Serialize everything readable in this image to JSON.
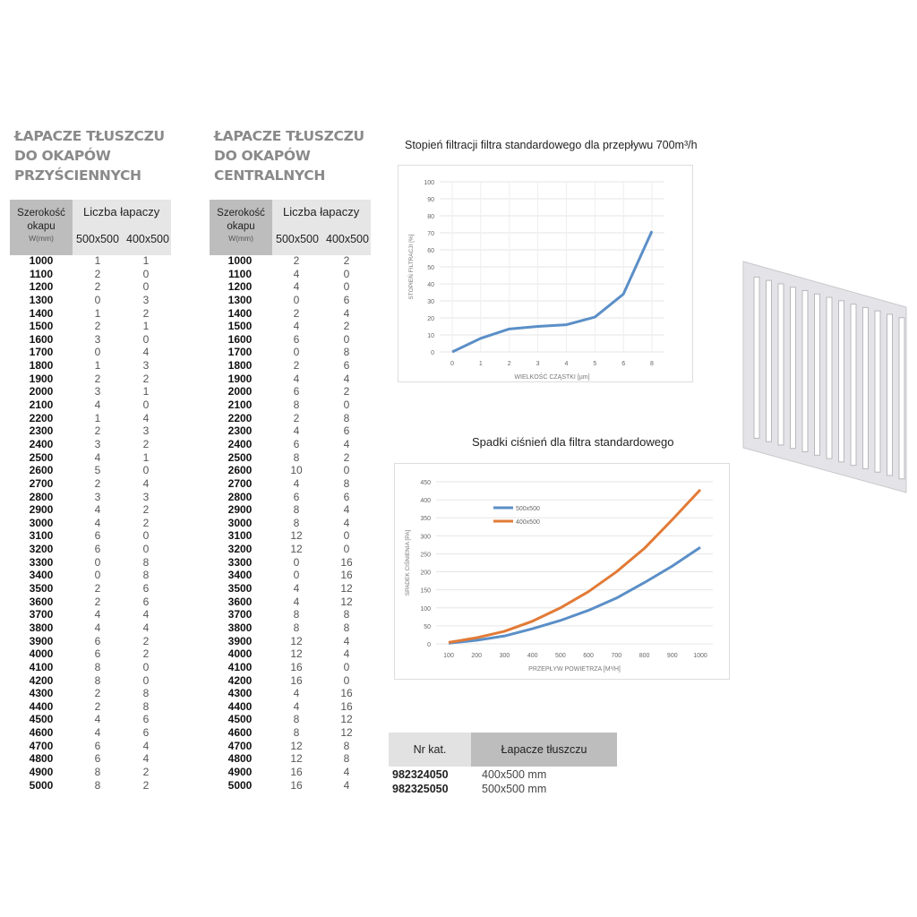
{
  "wall": {
    "title": [
      "ŁAPACZE TŁUSZCZU",
      "DO OKAPÓW",
      "PRZYŚCIENNYCH"
    ]
  },
  "central": {
    "title": [
      "ŁAPACZE TŁUSZCZU",
      "DO OKAPÓW",
      "CENTRALNYCH"
    ]
  },
  "table_header": {
    "width_label": "Szerokość",
    "width_label2": "okapu",
    "width_unit": "W(mm)",
    "count_label": "Liczba łapaczy",
    "col_a": "500x500",
    "col_b": "400x500"
  },
  "widths": [
    1000,
    1100,
    1200,
    1300,
    1400,
    1500,
    1600,
    1700,
    1800,
    1900,
    2000,
    2100,
    2200,
    2300,
    2400,
    2500,
    2600,
    2700,
    2800,
    2900,
    3000,
    3100,
    3200,
    3300,
    3400,
    3500,
    3600,
    3700,
    3800,
    3900,
    4000,
    4100,
    4200,
    4300,
    4400,
    4500,
    4600,
    4700,
    4800,
    4900,
    5000
  ],
  "wall_a": [
    1,
    2,
    2,
    0,
    1,
    2,
    3,
    0,
    1,
    2,
    3,
    4,
    1,
    2,
    3,
    4,
    5,
    2,
    3,
    4,
    4,
    6,
    6,
    0,
    0,
    2,
    2,
    4,
    4,
    6,
    6,
    8,
    8,
    2,
    2,
    4,
    4,
    6,
    6,
    8,
    8
  ],
  "wall_b": [
    1,
    0,
    0,
    3,
    2,
    1,
    0,
    4,
    3,
    2,
    1,
    0,
    4,
    3,
    2,
    1,
    0,
    4,
    3,
    2,
    2,
    0,
    0,
    8,
    8,
    6,
    6,
    4,
    4,
    2,
    2,
    0,
    0,
    8,
    8,
    6,
    6,
    4,
    4,
    2,
    2
  ],
  "central_a": [
    2,
    4,
    4,
    0,
    2,
    4,
    6,
    0,
    2,
    4,
    6,
    8,
    2,
    4,
    6,
    8,
    10,
    4,
    6,
    8,
    8,
    12,
    12,
    0,
    0,
    4,
    4,
    8,
    8,
    12,
    12,
    16,
    16,
    4,
    4,
    8,
    8,
    12,
    12,
    16,
    16
  ],
  "central_b": [
    2,
    0,
    0,
    6,
    4,
    2,
    0,
    8,
    6,
    4,
    2,
    0,
    8,
    6,
    4,
    2,
    0,
    8,
    6,
    4,
    4,
    0,
    0,
    16,
    16,
    12,
    12,
    8,
    8,
    4,
    4,
    0,
    0,
    16,
    16,
    12,
    12,
    8,
    8,
    4,
    4
  ],
  "chart_data": [
    {
      "type": "line",
      "title": "Stopień filtracji filtra standardowego dla przepływu 700m³/h",
      "xlabel": "WIELKOŚĆ CZĄSTKI [µm]",
      "ylabel": "STOPIEŃ FILTRACJI [%]",
      "categories": [
        "0",
        "1",
        "2",
        "3",
        "4",
        "5",
        "6",
        "8"
      ],
      "series": [
        {
          "values": [
            0,
            8,
            13.5,
            15,
            16,
            20.5,
            34,
            71
          ],
          "color": "#5b8fc7"
        }
      ],
      "ylim": [
        0,
        100
      ],
      "yticks": [
        0,
        10,
        20,
        30,
        40,
        50,
        60,
        70,
        80,
        90,
        100
      ],
      "grid": true
    },
    {
      "type": "line",
      "title": "Spadki ciśnień dla filtra standardowego",
      "xlabel": "PRZEPŁYW POWIETRZA [M³/H]",
      "ylabel": "SPADEK CIŚNIENIA [PA]",
      "categories": [
        "100",
        "200",
        "300",
        "400",
        "500",
        "600",
        "700",
        "800",
        "900",
        "1000"
      ],
      "series": [
        {
          "name": "500x500",
          "values": [
            2,
            10,
            22,
            42,
            65,
            93,
            127,
            170,
            216,
            268
          ],
          "color": "#5b8fc7"
        },
        {
          "name": "400x500",
          "values": [
            4,
            17,
            35,
            63,
            100,
            145,
            200,
            265,
            345,
            428
          ],
          "color": "#e27a36"
        }
      ],
      "ylim": [
        0,
        450
      ],
      "yticks": [
        0,
        50,
        100,
        150,
        200,
        250,
        300,
        350,
        400,
        450
      ],
      "grid": true,
      "legend": "top-left"
    }
  ],
  "catalog": {
    "col1": "Nr kat.",
    "col2": "Łapacze tłuszczu",
    "rows": [
      {
        "nr": "982324050",
        "desc": "400x500 mm"
      },
      {
        "nr": "982325050",
        "desc": "500x500 mm"
      }
    ]
  },
  "image": {
    "subject": "grease-filter-grille"
  }
}
